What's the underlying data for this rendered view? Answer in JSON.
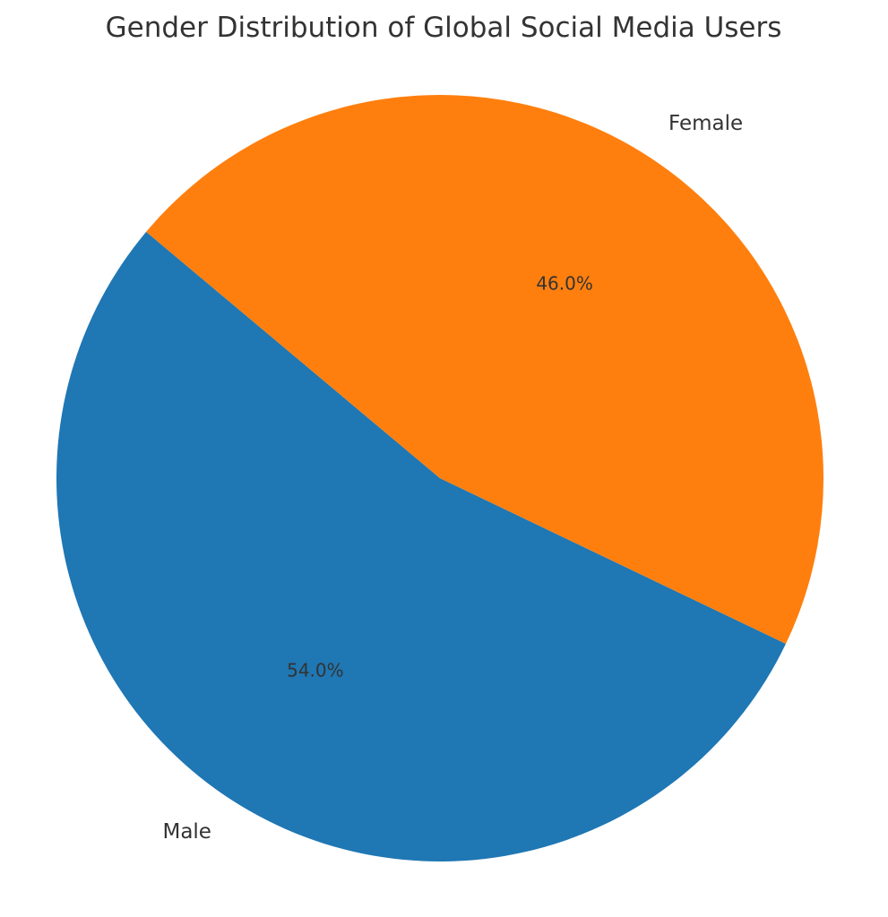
{
  "chart_data": {
    "type": "pie",
    "title": "Gender Distribution of Global Social Media Users",
    "slices": [
      {
        "label": "Male",
        "value": 54.0,
        "pct_label": "54.0%",
        "color": "#1f77b4"
      },
      {
        "label": "Female",
        "value": 46.0,
        "pct_label": "46.0%",
        "color": "#ff7f0e"
      }
    ],
    "start_angle_deg": 140,
    "direction": "counterclockwise"
  }
}
